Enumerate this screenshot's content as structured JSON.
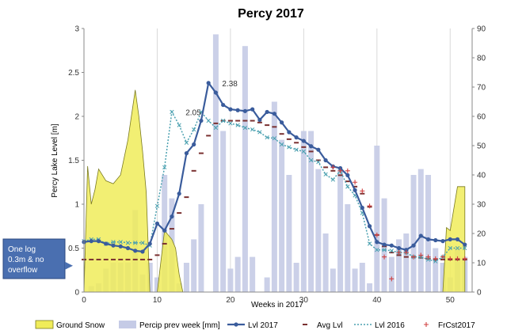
{
  "chart_data": {
    "type": "line",
    "title": "Percy 2017",
    "xlabel": "Weeks in 2017",
    "ylabel": "Percy Lake Level [m]",
    "y2label": "",
    "xlim": [
      0,
      53
    ],
    "ylim": [
      0,
      3
    ],
    "y2lim": [
      0,
      90
    ],
    "xticks": [
      0,
      10,
      20,
      30,
      40,
      50
    ],
    "yticks": [
      0,
      0.5,
      1,
      1.5,
      2,
      2.5,
      3
    ],
    "y2ticks": [
      0,
      10,
      20,
      30,
      40,
      50,
      60,
      70,
      80,
      90
    ],
    "grid": "vertical",
    "legend_position": "bottom",
    "colors": {
      "snow_fill": "#f0ec5a",
      "snow_stroke": "#7a7a20",
      "precip": "#c5cbe6",
      "lvl2017": "#3a5c9c",
      "avg": "#7a3030",
      "lvl2016": "#4aa0b0",
      "frcst": "#d04040",
      "callout_bg": "#4a6fb0"
    },
    "series": [
      {
        "name": "Ground Snow",
        "axis": "right",
        "kind": "area",
        "x": [
          0,
          0.5,
          1,
          1.5,
          2,
          3,
          4,
          5,
          6,
          7,
          7.5,
          8,
          8.5,
          9,
          9.5,
          10,
          11,
          12,
          12.5,
          13,
          13.5,
          49,
          49.5,
          50,
          51,
          52
        ],
        "values": [
          0,
          43,
          30,
          35,
          42,
          38,
          37,
          40,
          52,
          69,
          60,
          48,
          34,
          0,
          0,
          0,
          21,
          18,
          15,
          6,
          0,
          0,
          22,
          21,
          36,
          36
        ]
      },
      {
        "name": "Percip prev week [mm]",
        "axis": "right",
        "kind": "bar",
        "x": [
          1,
          2,
          3,
          4,
          5,
          6,
          7,
          8,
          9,
          10,
          11,
          12,
          13,
          14,
          15,
          16,
          17,
          18,
          19,
          20,
          21,
          22,
          23,
          24,
          25,
          26,
          27,
          28,
          29,
          30,
          31,
          32,
          33,
          34,
          35,
          36,
          37,
          38,
          39,
          40,
          41,
          42,
          43,
          44,
          45,
          46,
          47,
          48,
          49,
          50,
          51,
          52
        ],
        "values": [
          2,
          3,
          8,
          10,
          10,
          10,
          28,
          6,
          10,
          5,
          40,
          32,
          3,
          10,
          18,
          30,
          0,
          88,
          55,
          8,
          12,
          84,
          12,
          0,
          5,
          65,
          52,
          40,
          10,
          55,
          55,
          42,
          20,
          8,
          42,
          30,
          8,
          10,
          3,
          50,
          32,
          12,
          18,
          20,
          40,
          42,
          40,
          15,
          10,
          5,
          15,
          12
        ]
      },
      {
        "name": "Lvl 2017",
        "axis": "left",
        "kind": "line",
        "x": [
          0,
          1,
          2,
          3,
          4,
          5,
          6,
          7,
          8,
          9,
          10,
          11,
          12,
          13,
          14,
          15,
          16,
          17,
          18,
          19,
          20,
          21,
          22,
          23,
          24,
          25,
          26,
          27,
          28,
          29,
          30,
          31,
          32,
          33,
          34,
          35,
          36,
          37,
          38,
          39,
          40,
          41,
          42,
          43,
          44,
          45,
          46,
          47,
          48,
          49,
          50,
          51,
          52
        ],
        "values": [
          0.57,
          0.58,
          0.58,
          0.55,
          0.53,
          0.52,
          0.5,
          0.47,
          0.46,
          0.55,
          0.78,
          0.7,
          0.86,
          1.12,
          1.58,
          1.68,
          1.95,
          2.38,
          2.27,
          2.13,
          2.08,
          2.07,
          2.06,
          2.08,
          1.96,
          2.05,
          2.03,
          1.93,
          1.82,
          1.76,
          1.72,
          1.66,
          1.62,
          1.5,
          1.43,
          1.41,
          1.33,
          1.16,
          0.96,
          0.75,
          0.57,
          0.54,
          0.53,
          0.5,
          0.48,
          0.53,
          0.64,
          0.6,
          0.59,
          0.58,
          0.6,
          0.6,
          0.54
        ]
      },
      {
        "name": "Avg Lvl",
        "axis": "left",
        "kind": "markers",
        "marker": "dash",
        "x": [
          0,
          1,
          2,
          3,
          4,
          5,
          6,
          7,
          8,
          9,
          10,
          11,
          12,
          13,
          14,
          15,
          16,
          17,
          18,
          19,
          20,
          21,
          22,
          23,
          24,
          25,
          26,
          27,
          28,
          29,
          30,
          31,
          32,
          33,
          34,
          35,
          36,
          37,
          38,
          39,
          40,
          41,
          42,
          43,
          44,
          45,
          46,
          47,
          48,
          49,
          50,
          51,
          52
        ],
        "values": [
          0.37,
          0.37,
          0.37,
          0.37,
          0.37,
          0.37,
          0.37,
          0.37,
          0.37,
          0.37,
          0.42,
          0.55,
          0.72,
          0.9,
          1.08,
          1.38,
          1.58,
          1.78,
          1.92,
          1.95,
          1.95,
          1.95,
          1.95,
          1.95,
          1.93,
          1.9,
          1.88,
          1.8,
          1.74,
          1.7,
          1.65,
          1.6,
          1.5,
          1.42,
          1.38,
          1.33,
          1.26,
          1.2,
          1.12,
          0.97,
          0.65,
          0.52,
          0.45,
          0.42,
          0.4,
          0.4,
          0.39,
          0.38,
          0.37,
          0.37,
          0.37,
          0.37,
          0.37
        ]
      },
      {
        "name": "Lvl 2016",
        "axis": "left",
        "kind": "line-dotted",
        "x": [
          0,
          1,
          2,
          3,
          4,
          5,
          6,
          7,
          8,
          9,
          10,
          11,
          12,
          13,
          14,
          15,
          16,
          17,
          18,
          19,
          20,
          21,
          22,
          23,
          24,
          25,
          26,
          27,
          28,
          29,
          30,
          31,
          32,
          33,
          34,
          35,
          36,
          37,
          38,
          39,
          40,
          41,
          42,
          43,
          44,
          45,
          46,
          47,
          48,
          49,
          50,
          51,
          52
        ],
        "values": [
          0.58,
          0.6,
          0.6,
          0.55,
          0.57,
          0.57,
          0.56,
          0.56,
          0.56,
          0.53,
          0.98,
          1.42,
          2.05,
          1.9,
          1.7,
          1.85,
          2.05,
          1.95,
          1.87,
          1.95,
          1.92,
          1.9,
          1.87,
          1.85,
          1.82,
          1.76,
          1.75,
          1.68,
          1.65,
          1.62,
          1.6,
          1.5,
          1.48,
          1.34,
          1.28,
          1.38,
          1.2,
          1.1,
          0.9,
          0.55,
          0.48,
          0.48,
          0.47,
          0.45,
          0.45,
          0.4,
          0.4,
          0.37,
          0.35,
          0.4,
          0.5,
          0.5,
          0.5
        ]
      },
      {
        "name": "FrCst2017",
        "axis": "left",
        "kind": "markers",
        "marker": "plus",
        "x": [
          34,
          35,
          36,
          37,
          38,
          39,
          40,
          41,
          42,
          43,
          44,
          45,
          46,
          47,
          48,
          49,
          50,
          51,
          52
        ],
        "values": [
          1.42,
          1.38,
          1.38,
          1.25,
          1.15,
          0.98,
          0.65,
          0.4,
          0.15,
          0.45,
          0.45,
          0.4,
          0.42,
          0.4,
          0.38,
          0.4,
          0.38,
          0.38,
          0.38
        ]
      }
    ],
    "annotations": [
      {
        "text": "2.38",
        "x": 18,
        "y": 2.38
      },
      {
        "text": "2.05",
        "x": 13,
        "y": 2.05
      }
    ],
    "callout": {
      "lines": [
        "One log",
        "0.3m & no",
        "overflow"
      ],
      "target_y": 0.3
    }
  }
}
